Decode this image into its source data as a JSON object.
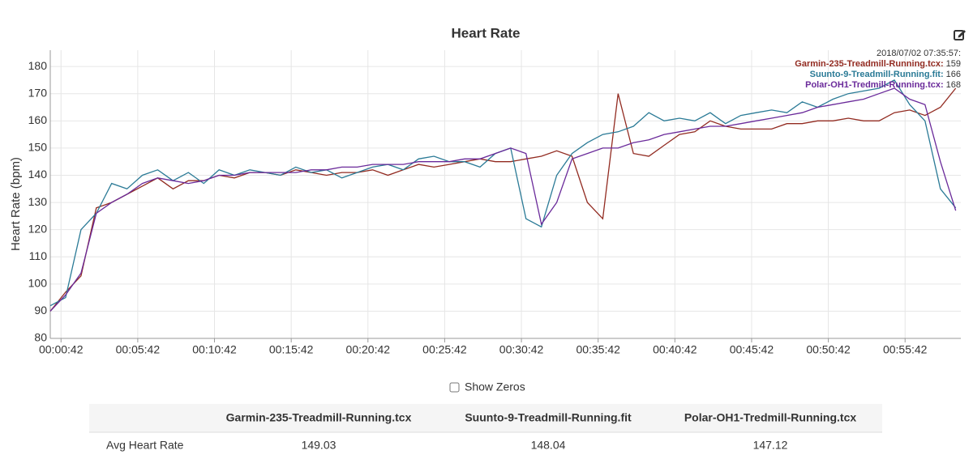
{
  "chart_data": {
    "type": "line",
    "title": "Heart Rate",
    "y_label": "Heart Rate (bpm)",
    "x": [
      0,
      60,
      120,
      180,
      240,
      300,
      360,
      420,
      480,
      540,
      600,
      660,
      720,
      780,
      840,
      900,
      960,
      1020,
      1080,
      1140,
      1200,
      1260,
      1320,
      1380,
      1440,
      1500,
      1560,
      1620,
      1680,
      1740,
      1800,
      1860,
      1920,
      1980,
      2040,
      2100,
      2160,
      2220,
      2280,
      2340,
      2400,
      2460,
      2520,
      2580,
      2640,
      2700,
      2760,
      2820,
      2880,
      2940,
      3000,
      3060,
      3120,
      3180,
      3240,
      3300,
      3360,
      3420,
      3480,
      3540
    ],
    "series": [
      {
        "name": "Garmin-235-Treadmill-Running.tcx",
        "color": "#922b21",
        "values": [
          90,
          97,
          103,
          128,
          130,
          133,
          136,
          139,
          135,
          138,
          138,
          140,
          139,
          141,
          141,
          140,
          142,
          141,
          140,
          141,
          141,
          142,
          140,
          142,
          144,
          143,
          144,
          145,
          146,
          145,
          145,
          146,
          147,
          149,
          147,
          130,
          124,
          170,
          148,
          147,
          151,
          155,
          156,
          160,
          158,
          157,
          157,
          157,
          159,
          159,
          160,
          160,
          161,
          160,
          160,
          163,
          164,
          162,
          165,
          172
        ]
      },
      {
        "name": "Suunto-9-Treadmill-Running.fit",
        "color": "#2a7a96",
        "values": [
          92,
          95,
          120,
          126,
          137,
          135,
          140,
          142,
          138,
          141,
          137,
          142,
          140,
          142,
          141,
          140,
          143,
          141,
          142,
          139,
          141,
          143,
          144,
          142,
          146,
          147,
          145,
          145,
          143,
          148,
          150,
          124,
          121,
          140,
          148,
          152,
          155,
          156,
          158,
          163,
          160,
          161,
          160,
          163,
          159,
          162,
          163,
          164,
          163,
          167,
          165,
          168,
          170,
          171,
          172,
          175,
          166,
          160,
          135,
          128
        ]
      },
      {
        "name": "Polar-OH1-Tredmill-Running.tcx",
        "color": "#6a2a9a",
        "values": [
          90,
          96,
          104,
          126,
          130,
          133,
          137,
          139,
          138,
          137,
          138,
          140,
          140,
          141,
          141,
          141,
          141,
          142,
          142,
          143,
          143,
          144,
          144,
          144,
          145,
          145,
          145,
          146,
          146,
          148,
          150,
          148,
          122,
          130,
          146,
          148,
          150,
          150,
          152,
          153,
          155,
          156,
          157,
          158,
          158,
          159,
          160,
          161,
          162,
          163,
          165,
          166,
          167,
          168,
          170,
          172,
          168,
          166,
          145,
          127
        ]
      }
    ],
    "xlim": [
      0,
      3560
    ],
    "ylim": [
      80,
      186
    ],
    "xticks": [
      {
        "value": 42,
        "label": "00:00:42"
      },
      {
        "value": 342,
        "label": "00:05:42"
      },
      {
        "value": 642,
        "label": "00:10:42"
      },
      {
        "value": 942,
        "label": "00:15:42"
      },
      {
        "value": 1242,
        "label": "00:20:42"
      },
      {
        "value": 1542,
        "label": "00:25:42"
      },
      {
        "value": 1842,
        "label": "00:30:42"
      },
      {
        "value": 2142,
        "label": "00:35:42"
      },
      {
        "value": 2442,
        "label": "00:40:42"
      },
      {
        "value": 2742,
        "label": "00:45:42"
      },
      {
        "value": 3042,
        "label": "00:50:42"
      },
      {
        "value": 3342,
        "label": "00:55:42"
      }
    ],
    "yticks": [
      80,
      90,
      100,
      110,
      120,
      130,
      140,
      150,
      160,
      170,
      180
    ],
    "grid": true,
    "tooltip": {
      "time": "2018/07/02 07:35:57:",
      "entries": [
        {
          "label": "Garmin-235-Treadmill-Running.tcx:",
          "value": 159
        },
        {
          "label": "Suunto-9-Treadmill-Running.fit:",
          "value": 166
        },
        {
          "label": "Polar-OH1-Tredmill-Running.tcx:",
          "value": 168
        }
      ]
    }
  },
  "controls": {
    "show_zeros": "Show Zeros"
  },
  "table": {
    "columns": [
      "Garmin-235-Treadmill-Running.tcx",
      "Suunto-9-Treadmill-Running.fit",
      "Polar-OH1-Tredmill-Running.tcx"
    ],
    "rows": [
      {
        "label": "Avg Heart Rate",
        "values": [
          149.03,
          148.04,
          147.12
        ]
      }
    ]
  }
}
